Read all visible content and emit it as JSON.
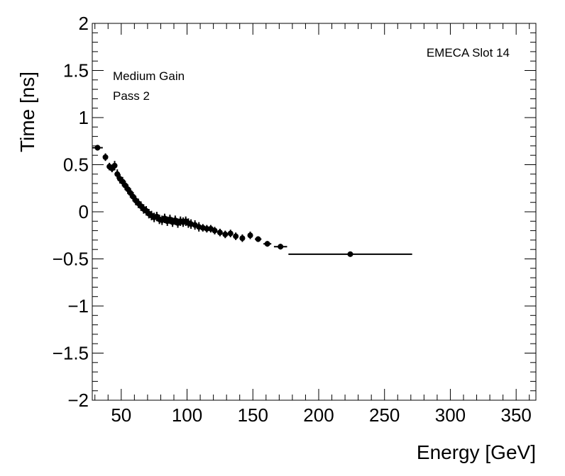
{
  "chart_data": {
    "type": "scatter",
    "title": "",
    "xlabel": "Energy [GeV]",
    "ylabel": "Time [ns]",
    "xlim": [
      28,
      365
    ],
    "ylim": [
      -2,
      2
    ],
    "xticks": [
      50,
      100,
      150,
      200,
      250,
      300,
      350
    ],
    "xtick_labels": [
      "50",
      "100",
      "150",
      "200",
      "250",
      "300",
      "350"
    ],
    "yticks": [
      -2,
      -1.5,
      -1,
      -0.5,
      0,
      0.5,
      1,
      1.5,
      2
    ],
    "ytick_labels": [
      "−2",
      "−1.5",
      "−1",
      "−0.5",
      "0",
      "0.5",
      "1",
      "1.5",
      "2"
    ],
    "annotations": {
      "top_right": "EMECA Slot 14",
      "line1": "Medium Gain",
      "line2": "Pass 2"
    },
    "series": [
      {
        "name": "data",
        "points": [
          {
            "x": 32,
            "y": 0.68,
            "xerr": 4,
            "yerr": 0.03
          },
          {
            "x": 38,
            "y": 0.58,
            "xerr": 1,
            "yerr": 0.04
          },
          {
            "x": 41,
            "y": 0.48,
            "xerr": 1,
            "yerr": 0.04
          },
          {
            "x": 43,
            "y": 0.46,
            "xerr": 1,
            "yerr": 0.04
          },
          {
            "x": 45,
            "y": 0.49,
            "xerr": 1,
            "yerr": 0.05
          },
          {
            "x": 47,
            "y": 0.4,
            "xerr": 1,
            "yerr": 0.05
          },
          {
            "x": 49,
            "y": 0.35,
            "xerr": 1,
            "yerr": 0.05
          },
          {
            "x": 51,
            "y": 0.32,
            "xerr": 1,
            "yerr": 0.05
          },
          {
            "x": 53,
            "y": 0.28,
            "xerr": 1,
            "yerr": 0.05
          },
          {
            "x": 55,
            "y": 0.24,
            "xerr": 1,
            "yerr": 0.05
          },
          {
            "x": 57,
            "y": 0.2,
            "xerr": 1,
            "yerr": 0.05
          },
          {
            "x": 59,
            "y": 0.16,
            "xerr": 1,
            "yerr": 0.05
          },
          {
            "x": 61,
            "y": 0.12,
            "xerr": 1,
            "yerr": 0.05
          },
          {
            "x": 63,
            "y": 0.09,
            "xerr": 1,
            "yerr": 0.05
          },
          {
            "x": 65,
            "y": 0.06,
            "xerr": 1,
            "yerr": 0.05
          },
          {
            "x": 67,
            "y": 0.03,
            "xerr": 1,
            "yerr": 0.05
          },
          {
            "x": 69,
            "y": 0.01,
            "xerr": 1,
            "yerr": 0.05
          },
          {
            "x": 71,
            "y": -0.02,
            "xerr": 1,
            "yerr": 0.05
          },
          {
            "x": 73,
            "y": -0.04,
            "xerr": 1,
            "yerr": 0.05
          },
          {
            "x": 75,
            "y": -0.06,
            "xerr": 1,
            "yerr": 0.05
          },
          {
            "x": 77,
            "y": -0.05,
            "xerr": 1,
            "yerr": 0.05
          },
          {
            "x": 79,
            "y": -0.08,
            "xerr": 1,
            "yerr": 0.05
          },
          {
            "x": 81,
            "y": -0.09,
            "xerr": 1,
            "yerr": 0.05
          },
          {
            "x": 83,
            "y": -0.07,
            "xerr": 1,
            "yerr": 0.05
          },
          {
            "x": 85,
            "y": -0.1,
            "xerr": 1,
            "yerr": 0.05
          },
          {
            "x": 87,
            "y": -0.08,
            "xerr": 1,
            "yerr": 0.05
          },
          {
            "x": 89,
            "y": -0.11,
            "xerr": 1,
            "yerr": 0.05
          },
          {
            "x": 91,
            "y": -0.09,
            "xerr": 1,
            "yerr": 0.05
          },
          {
            "x": 93,
            "y": -0.12,
            "xerr": 1,
            "yerr": 0.05
          },
          {
            "x": 95,
            "y": -0.1,
            "xerr": 1,
            "yerr": 0.05
          },
          {
            "x": 97,
            "y": -0.11,
            "xerr": 1,
            "yerr": 0.05
          },
          {
            "x": 99,
            "y": -0.1,
            "xerr": 1,
            "yerr": 0.05
          },
          {
            "x": 101,
            "y": -0.12,
            "xerr": 1,
            "yerr": 0.05
          },
          {
            "x": 103,
            "y": -0.13,
            "xerr": 1,
            "yerr": 0.05
          },
          {
            "x": 106,
            "y": -0.14,
            "xerr": 1,
            "yerr": 0.05
          },
          {
            "x": 109,
            "y": -0.16,
            "xerr": 1,
            "yerr": 0.05
          },
          {
            "x": 112,
            "y": -0.17,
            "xerr": 1,
            "yerr": 0.04
          },
          {
            "x": 115,
            "y": -0.18,
            "xerr": 1,
            "yerr": 0.04
          },
          {
            "x": 118,
            "y": -0.18,
            "xerr": 1,
            "yerr": 0.04
          },
          {
            "x": 121,
            "y": -0.2,
            "xerr": 1.5,
            "yerr": 0.04
          },
          {
            "x": 125,
            "y": -0.22,
            "xerr": 1.5,
            "yerr": 0.04
          },
          {
            "x": 129,
            "y": -0.24,
            "xerr": 1.5,
            "yerr": 0.04
          },
          {
            "x": 133,
            "y": -0.23,
            "xerr": 1.5,
            "yerr": 0.04
          },
          {
            "x": 137,
            "y": -0.26,
            "xerr": 1.5,
            "yerr": 0.04
          },
          {
            "x": 142,
            "y": -0.28,
            "xerr": 2,
            "yerr": 0.04
          },
          {
            "x": 148,
            "y": -0.25,
            "xerr": 2,
            "yerr": 0.04
          },
          {
            "x": 154,
            "y": -0.29,
            "xerr": 2.5,
            "yerr": 0.03
          },
          {
            "x": 161,
            "y": -0.34,
            "xerr": 3,
            "yerr": 0.03
          },
          {
            "x": 171,
            "y": -0.37,
            "xerr": 5,
            "yerr": 0.03
          },
          {
            "x": 224,
            "y": -0.45,
            "xerr": 47,
            "yerr": 0.01
          }
        ]
      }
    ]
  }
}
